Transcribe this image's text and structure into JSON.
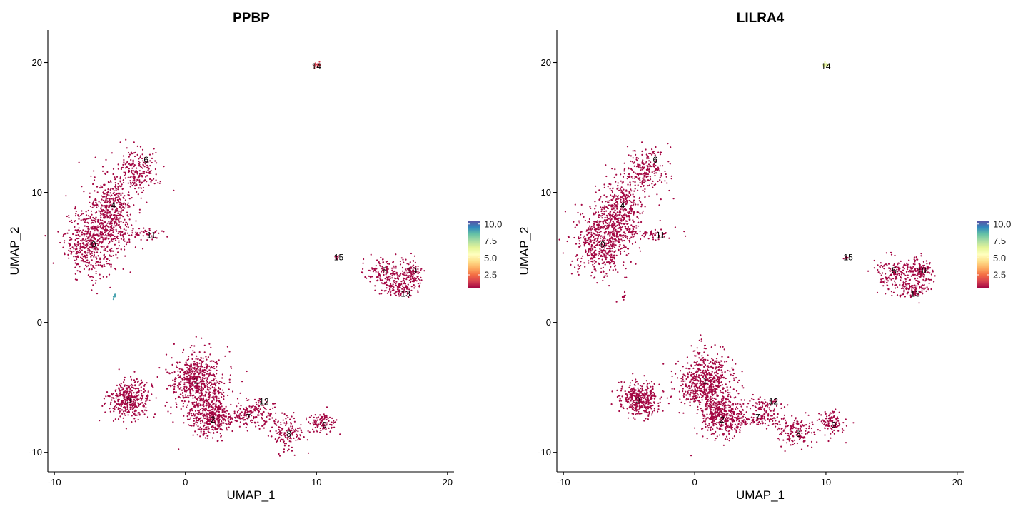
{
  "chart_data": [
    {
      "type": "scatter",
      "title": "PPBP",
      "xlabel": "UMAP_1",
      "ylabel": "UMAP_2",
      "xlim": [
        -10.5,
        20.5
      ],
      "ylim": [
        -11.5,
        22.5
      ],
      "x_ticks": [
        -10,
        0,
        10,
        20
      ],
      "y_ticks": [
        -10,
        0,
        10,
        20
      ],
      "x_tick_labels": [
        "-10",
        "0",
        "10",
        "20"
      ],
      "y_tick_labels": [
        "-10",
        "0",
        "10",
        "20"
      ],
      "grid": false,
      "colorbar": {
        "ticks": [
          2.5,
          5.0,
          7.5,
          10.0
        ],
        "tick_labels": [
          "2.5",
          "5.0",
          "7.5",
          "10.0"
        ],
        "range": [
          0.5,
          10.5
        ],
        "colors": [
          "#9e0142",
          "#d53e4f",
          "#f46d43",
          "#fdae61",
          "#fee08b",
          "#ffffbf",
          "#e6f598",
          "#abdda4",
          "#66c2a5",
          "#3288bd",
          "#5e4fa2"
        ]
      },
      "cluster_labels": [
        {
          "text": "0",
          "x": -7.0,
          "y": 6.0
        },
        {
          "text": "1",
          "x": 0.8,
          "y": -4.5
        },
        {
          "text": "2",
          "x": 2.1,
          "y": -7.5
        },
        {
          "text": "3",
          "x": -4.3,
          "y": -6.0
        },
        {
          "text": "4",
          "x": -5.5,
          "y": 9.0
        },
        {
          "text": "5",
          "x": 15.2,
          "y": 4.0
        },
        {
          "text": "6",
          "x": -3.0,
          "y": 12.5
        },
        {
          "text": "7",
          "x": 4.8,
          "y": -7.3
        },
        {
          "text": "8",
          "x": 7.9,
          "y": -8.6
        },
        {
          "text": "9",
          "x": 10.6,
          "y": -7.9
        },
        {
          "text": "10",
          "x": 17.3,
          "y": 4.0
        },
        {
          "text": "11",
          "x": -2.6,
          "y": 6.7
        },
        {
          "text": "12",
          "x": 6.0,
          "y": -6.1
        },
        {
          "text": "13",
          "x": 16.8,
          "y": 2.2
        },
        {
          "text": "14",
          "x": 10.0,
          "y": 19.7
        },
        {
          "text": "15",
          "x": 11.7,
          "y": 5.0
        }
      ],
      "clusters": [
        {
          "id": "0",
          "points": 520,
          "cx": -7.2,
          "cy": 6.2,
          "sx": 1.0,
          "sy": 1.3
        },
        {
          "id": "4",
          "points": 420,
          "cx": -5.6,
          "cy": 8.6,
          "sx": 0.8,
          "sy": 1.4
        },
        {
          "id": "6",
          "points": 200,
          "cx": -3.6,
          "cy": 11.7,
          "sx": 0.8,
          "sy": 0.9
        },
        {
          "id": "11",
          "points": 60,
          "cx": -3.5,
          "cy": 6.8,
          "sx": 1.0,
          "sy": 0.2
        },
        {
          "id": "3",
          "points": 380,
          "cx": -4.2,
          "cy": -5.9,
          "sx": 0.8,
          "sy": 0.7
        },
        {
          "id": "1",
          "points": 620,
          "cx": 0.9,
          "cy": -4.6,
          "sx": 1.0,
          "sy": 1.2
        },
        {
          "id": "2",
          "points": 380,
          "cx": 2.0,
          "cy": -7.3,
          "sx": 0.8,
          "sy": 0.8
        },
        {
          "id": "7",
          "points": 150,
          "cx": 4.8,
          "cy": -7.3,
          "sx": 1.2,
          "sy": 0.4
        },
        {
          "id": "12",
          "points": 60,
          "cx": 5.3,
          "cy": -6.4,
          "sx": 0.8,
          "sy": 0.3
        },
        {
          "id": "8",
          "points": 140,
          "cx": 7.7,
          "cy": -8.5,
          "sx": 0.7,
          "sy": 0.5
        },
        {
          "id": "9",
          "points": 110,
          "cx": 10.4,
          "cy": -7.7,
          "sx": 0.5,
          "sy": 0.4
        },
        {
          "id": "5",
          "points": 180,
          "cx": 15.4,
          "cy": 3.7,
          "sx": 0.9,
          "sy": 0.6
        },
        {
          "id": "10",
          "points": 110,
          "cx": 17.3,
          "cy": 3.8,
          "sx": 0.4,
          "sy": 0.5
        },
        {
          "id": "13",
          "points": 80,
          "cx": 16.5,
          "cy": 2.5,
          "sx": 0.6,
          "sy": 0.3
        },
        {
          "id": "14",
          "points": 20,
          "cx": 10.0,
          "cy": 19.8,
          "sx": 0.12,
          "sy": 0.1
        },
        {
          "id": "15",
          "points": 8,
          "cx": 11.6,
          "cy": 5.0,
          "sx": 0.08,
          "sy": 0.06
        },
        {
          "id": "outlier",
          "points": 10,
          "cx": -5.4,
          "cy": 2.0,
          "sx": 0.06,
          "sy": 0.15
        }
      ],
      "expression_by_cluster": {
        "outlier": 9.0,
        "14": 1.5
      }
    },
    {
      "type": "scatter",
      "title": "LILRA4",
      "xlabel": "UMAP_1",
      "ylabel": "UMAP_2",
      "xlim": [
        -10.5,
        20.5
      ],
      "ylim": [
        -11.5,
        22.5
      ],
      "x_ticks": [
        -10,
        0,
        10,
        20
      ],
      "y_ticks": [
        -10,
        0,
        10,
        20
      ],
      "x_tick_labels": [
        "-10",
        "0",
        "10",
        "20"
      ],
      "y_tick_labels": [
        "-10",
        "0",
        "10",
        "20"
      ],
      "grid": false,
      "colorbar": {
        "ticks": [
          2.5,
          5.0,
          7.5,
          10.0
        ],
        "tick_labels": [
          "2.5",
          "5.0",
          "7.5",
          "10.0"
        ],
        "range": [
          0.5,
          10.5
        ],
        "colors": [
          "#9e0142",
          "#d53e4f",
          "#f46d43",
          "#fdae61",
          "#fee08b",
          "#ffffbf",
          "#e6f598",
          "#abdda4",
          "#66c2a5",
          "#3288bd",
          "#5e4fa2"
        ]
      },
      "cluster_labels": [
        {
          "text": "0",
          "x": -7.0,
          "y": 6.0
        },
        {
          "text": "1",
          "x": 0.8,
          "y": -4.5
        },
        {
          "text": "2",
          "x": 2.1,
          "y": -7.5
        },
        {
          "text": "3",
          "x": -4.3,
          "y": -6.0
        },
        {
          "text": "4",
          "x": -5.5,
          "y": 9.0
        },
        {
          "text": "5",
          "x": 15.2,
          "y": 4.0
        },
        {
          "text": "6",
          "x": -3.0,
          "y": 12.5
        },
        {
          "text": "7",
          "x": 4.8,
          "y": -7.3
        },
        {
          "text": "8",
          "x": 7.9,
          "y": -8.6
        },
        {
          "text": "9",
          "x": 10.6,
          "y": -7.9
        },
        {
          "text": "10",
          "x": 17.3,
          "y": 4.0
        },
        {
          "text": "11",
          "x": -2.6,
          "y": 6.7
        },
        {
          "text": "12",
          "x": 6.0,
          "y": -6.1
        },
        {
          "text": "13",
          "x": 16.8,
          "y": 2.2
        },
        {
          "text": "14",
          "x": 10.0,
          "y": 19.7
        },
        {
          "text": "15",
          "x": 11.7,
          "y": 5.0
        }
      ],
      "clusters": [
        {
          "id": "0",
          "points": 520,
          "cx": -7.2,
          "cy": 6.2,
          "sx": 1.0,
          "sy": 1.3
        },
        {
          "id": "4",
          "points": 420,
          "cx": -5.6,
          "cy": 8.6,
          "sx": 0.8,
          "sy": 1.4
        },
        {
          "id": "6",
          "points": 200,
          "cx": -3.6,
          "cy": 11.7,
          "sx": 0.8,
          "sy": 0.9
        },
        {
          "id": "11",
          "points": 60,
          "cx": -3.5,
          "cy": 6.8,
          "sx": 1.0,
          "sy": 0.2
        },
        {
          "id": "3",
          "points": 380,
          "cx": -4.2,
          "cy": -5.9,
          "sx": 0.8,
          "sy": 0.7
        },
        {
          "id": "1",
          "points": 620,
          "cx": 0.9,
          "cy": -4.6,
          "sx": 1.0,
          "sy": 1.2
        },
        {
          "id": "2",
          "points": 380,
          "cx": 2.0,
          "cy": -7.3,
          "sx": 0.8,
          "sy": 0.8
        },
        {
          "id": "7",
          "points": 150,
          "cx": 4.8,
          "cy": -7.3,
          "sx": 1.2,
          "sy": 0.4
        },
        {
          "id": "12",
          "points": 60,
          "cx": 5.3,
          "cy": -6.4,
          "sx": 0.8,
          "sy": 0.3
        },
        {
          "id": "8",
          "points": 140,
          "cx": 7.7,
          "cy": -8.5,
          "sx": 0.7,
          "sy": 0.5
        },
        {
          "id": "9",
          "points": 110,
          "cx": 10.4,
          "cy": -7.7,
          "sx": 0.5,
          "sy": 0.4
        },
        {
          "id": "5",
          "points": 180,
          "cx": 15.4,
          "cy": 3.7,
          "sx": 0.9,
          "sy": 0.6
        },
        {
          "id": "10",
          "points": 110,
          "cx": 17.3,
          "cy": 3.8,
          "sx": 0.4,
          "sy": 0.5
        },
        {
          "id": "13",
          "points": 80,
          "cx": 16.5,
          "cy": 2.5,
          "sx": 0.6,
          "sy": 0.3
        },
        {
          "id": "14",
          "points": 20,
          "cx": 10.0,
          "cy": 19.8,
          "sx": 0.12,
          "sy": 0.1
        },
        {
          "id": "15",
          "points": 8,
          "cx": 11.6,
          "cy": 5.0,
          "sx": 0.08,
          "sy": 0.06
        },
        {
          "id": "outlier",
          "points": 10,
          "cx": -5.4,
          "cy": 2.0,
          "sx": 0.06,
          "sy": 0.15
        }
      ],
      "expression_by_cluster": {
        "14": 6.5
      }
    }
  ]
}
